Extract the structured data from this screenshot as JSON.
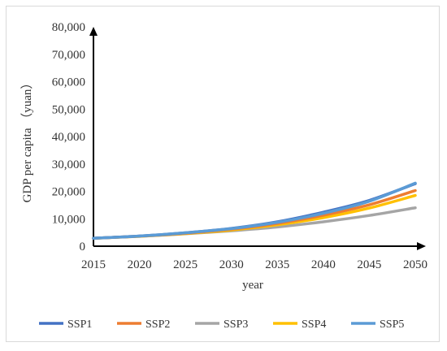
{
  "chart_data": {
    "type": "line",
    "xlabel": "year",
    "ylabel": "GDP per capita （yuan）",
    "x_ticks": [
      "2015",
      "2020",
      "2025",
      "2030",
      "2035",
      "2040",
      "2045",
      "2050"
    ],
    "y_ticks": [
      "0",
      "10,000",
      "20,000",
      "30,000",
      "40,000",
      "50,000",
      "60,000",
      "70,000",
      "80,000"
    ],
    "xlim": [
      2015,
      2050
    ],
    "ylim": [
      0,
      80000
    ],
    "grid": false,
    "legend_position": "bottom",
    "x": [
      2015,
      2020,
      2025,
      2030,
      2035,
      2040,
      2045,
      2050
    ],
    "series": [
      {
        "name": "SSP1",
        "color": "#4472c4",
        "values": [
          2900,
          3700,
          4900,
          6500,
          8900,
          12400,
          16700,
          22800
        ]
      },
      {
        "name": "SSP2",
        "color": "#ed7d31",
        "values": [
          2900,
          3650,
          4750,
          6200,
          8300,
          11300,
          15100,
          20300
        ]
      },
      {
        "name": "SSP3",
        "color": "#a5a5a5",
        "values": [
          2900,
          3600,
          4500,
          5600,
          7000,
          8900,
          11200,
          14000
        ]
      },
      {
        "name": "SSP4",
        "color": "#ffc000",
        "values": [
          2900,
          3600,
          4600,
          5900,
          7800,
          10400,
          13900,
          18500
        ]
      },
      {
        "name": "SSP5",
        "color": "#5b9bd5",
        "values": [
          2900,
          3700,
          4900,
          6400,
          8700,
          12000,
          16400,
          23000
        ]
      }
    ]
  }
}
